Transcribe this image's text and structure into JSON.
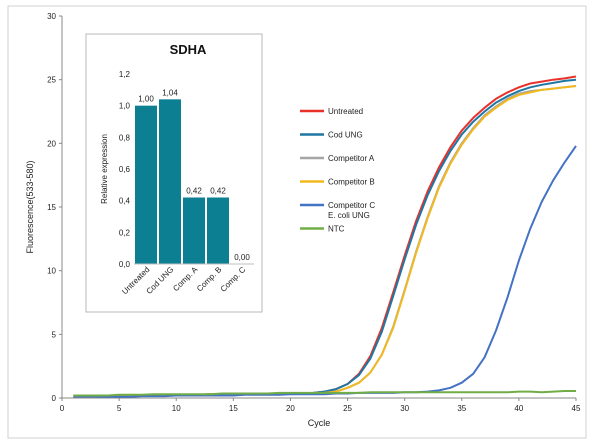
{
  "chart_data": [
    {
      "type": "line",
      "xlabel": "Cycle",
      "ylabel": "Fluorescence(533-580)",
      "xlim": [
        0,
        45
      ],
      "ylim": [
        0,
        30
      ],
      "xticks": [
        "0",
        "5",
        "10",
        "15",
        "20",
        "25",
        "30",
        "35",
        "40",
        "45"
      ],
      "yticks": [
        "0",
        "5",
        "10",
        "15",
        "20",
        "25",
        "30"
      ],
      "grid": false,
      "legend_position": "right",
      "x": [
        1,
        2,
        3,
        4,
        5,
        6,
        7,
        8,
        9,
        10,
        11,
        12,
        13,
        14,
        15,
        16,
        17,
        18,
        19,
        20,
        21,
        22,
        23,
        24,
        25,
        26,
        27,
        28,
        29,
        30,
        31,
        32,
        33,
        34,
        35,
        36,
        37,
        38,
        39,
        40,
        41,
        42,
        43,
        44,
        45
      ],
      "series": [
        {
          "name": "Untreated",
          "color": "#e8312a",
          "values": [
            0.1,
            0.1,
            0.1,
            0.15,
            0.2,
            0.2,
            0.2,
            0.2,
            0.2,
            0.25,
            0.25,
            0.25,
            0.3,
            0.3,
            0.3,
            0.3,
            0.3,
            0.3,
            0.35,
            0.35,
            0.35,
            0.4,
            0.5,
            0.7,
            1.1,
            1.9,
            3.3,
            5.5,
            8.3,
            11.2,
            13.9,
            16.2,
            18.1,
            19.7,
            21.0,
            22.0,
            22.8,
            23.5,
            24.0,
            24.4,
            24.7,
            24.85,
            25.0,
            25.1,
            25.25
          ]
        },
        {
          "name": "Cod UNG",
          "color": "#1f77a4",
          "values": [
            0.1,
            0.1,
            0.1,
            0.15,
            0.2,
            0.2,
            0.2,
            0.2,
            0.2,
            0.25,
            0.25,
            0.25,
            0.3,
            0.3,
            0.3,
            0.3,
            0.3,
            0.3,
            0.35,
            0.35,
            0.35,
            0.4,
            0.5,
            0.7,
            1.1,
            1.8,
            3.1,
            5.2,
            8.0,
            10.9,
            13.6,
            15.9,
            17.8,
            19.4,
            20.7,
            21.7,
            22.5,
            23.2,
            23.7,
            24.1,
            24.4,
            24.6,
            24.75,
            24.9,
            25.0
          ]
        },
        {
          "name": "Competitor A",
          "color": "#a5a5a5",
          "values": [
            0.1,
            0.1,
            0.1,
            0.15,
            0.2,
            0.2,
            0.2,
            0.2,
            0.2,
            0.25,
            0.25,
            0.25,
            0.3,
            0.3,
            0.3,
            0.3,
            0.3,
            0.3,
            0.35,
            0.35,
            0.35,
            0.35,
            0.4,
            0.5,
            0.8,
            1.2,
            2.0,
            3.4,
            5.6,
            8.5,
            11.5,
            14.2,
            16.6,
            18.5,
            20.0,
            21.2,
            22.2,
            22.9,
            23.5,
            23.9,
            24.1,
            24.2,
            24.3,
            24.4,
            24.5
          ]
        },
        {
          "name": "Competitor B",
          "color": "#f2b91e",
          "values": [
            0.1,
            0.1,
            0.1,
            0.15,
            0.2,
            0.2,
            0.2,
            0.2,
            0.2,
            0.25,
            0.25,
            0.25,
            0.3,
            0.3,
            0.3,
            0.3,
            0.3,
            0.3,
            0.35,
            0.35,
            0.35,
            0.35,
            0.4,
            0.5,
            0.8,
            1.2,
            2.0,
            3.4,
            5.5,
            8.4,
            11.4,
            14.1,
            16.5,
            18.4,
            19.9,
            21.1,
            22.1,
            22.8,
            23.4,
            23.8,
            24.0,
            24.2,
            24.3,
            24.4,
            24.5
          ]
        },
        {
          "name": "Competitor C\nE. coli UNG",
          "color": "#4472c4",
          "values": [
            0.1,
            0.1,
            0.1,
            0.1,
            0.1,
            0.1,
            0.15,
            0.15,
            0.15,
            0.2,
            0.2,
            0.2,
            0.2,
            0.2,
            0.2,
            0.25,
            0.25,
            0.25,
            0.25,
            0.3,
            0.3,
            0.3,
            0.3,
            0.35,
            0.35,
            0.4,
            0.4,
            0.4,
            0.4,
            0.45,
            0.45,
            0.5,
            0.6,
            0.8,
            1.2,
            1.9,
            3.2,
            5.3,
            7.9,
            10.8,
            13.3,
            15.4,
            17.1,
            18.5,
            19.8
          ]
        },
        {
          "name": "NTC",
          "color": "#70ad47",
          "values": [
            0.2,
            0.2,
            0.2,
            0.2,
            0.25,
            0.25,
            0.25,
            0.3,
            0.3,
            0.3,
            0.3,
            0.3,
            0.3,
            0.35,
            0.35,
            0.35,
            0.35,
            0.35,
            0.4,
            0.4,
            0.4,
            0.4,
            0.4,
            0.4,
            0.4,
            0.4,
            0.45,
            0.45,
            0.45,
            0.45,
            0.45,
            0.45,
            0.45,
            0.45,
            0.45,
            0.45,
            0.45,
            0.45,
            0.45,
            0.5,
            0.5,
            0.45,
            0.5,
            0.55,
            0.55
          ]
        }
      ]
    },
    {
      "type": "bar",
      "title": "SDHA",
      "ylabel": "Relative expression",
      "categories": [
        "Untreated",
        "Cod UNG",
        "Comp. A",
        "Comp. B",
        "Comp. C"
      ],
      "values": [
        1.0,
        1.04,
        0.42,
        0.42,
        0.0
      ],
      "data_labels": [
        "1,00",
        "1,04",
        "0,42",
        "0,42",
        "0,00"
      ],
      "ylim": [
        0,
        1.2
      ],
      "yticks": [
        "0,0",
        "0,2",
        "0,4",
        "0,6",
        "0,8",
        "1,0",
        "1,2"
      ],
      "color": "#0d7f93"
    }
  ]
}
